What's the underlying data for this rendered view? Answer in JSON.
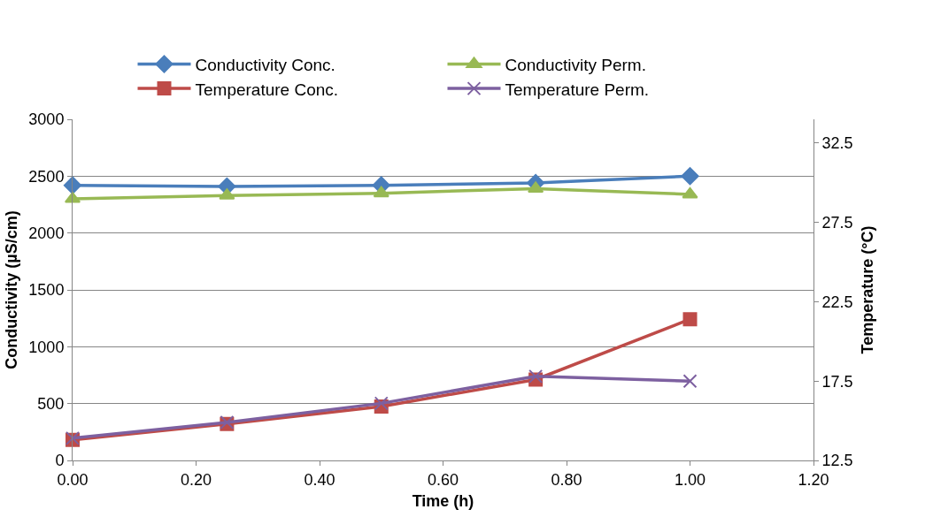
{
  "chart_data": {
    "type": "line",
    "xlabel": "Time (h)",
    "ylabel": "Conductivity (µS/cm)",
    "y2label": "Temperature (°C)",
    "x": [
      0,
      0.25,
      0.5,
      0.75,
      1.0
    ],
    "series": [
      {
        "name": "Conductivity Conc.",
        "color": "#4a7ebb",
        "marker": "diamond",
        "values": [
          2420,
          2410,
          2420,
          2440,
          2500
        ]
      },
      {
        "name": "Conductivity Perm.",
        "color": "#98b954",
        "marker": "triangle",
        "values": [
          2300,
          2330,
          2350,
          2390,
          2340
        ]
      },
      {
        "name": "Temperature Conc.",
        "color": "#be4b48",
        "marker": "square",
        "axis": "y2",
        "values": [
          13.8,
          14.8,
          15.9,
          17.6,
          21.4
        ]
      },
      {
        "name": "Temperature Perm.",
        "color": "#7d60a0",
        "marker": "cross",
        "axis": "y2",
        "values": [
          13.9,
          14.9,
          16.1,
          17.8,
          17.5
        ]
      }
    ],
    "xlim": [
      0,
      1.2
    ],
    "xticks": [
      {
        "value": 0,
        "label": "0.00"
      },
      {
        "value": 0.2,
        "label": "0.20"
      },
      {
        "value": 0.4,
        "label": "0.40"
      },
      {
        "value": 0.6,
        "label": "0.60"
      },
      {
        "value": 0.8,
        "label": "0.80"
      },
      {
        "value": 1.0,
        "label": "1.00"
      },
      {
        "value": 1.2,
        "label": "1.20"
      }
    ],
    "ylim": [
      0,
      3000
    ],
    "yticks": [
      0,
      500,
      1000,
      1500,
      2000,
      2500,
      3000
    ],
    "y2lim": [
      12.5,
      34
    ],
    "y2ticks": [
      12.5,
      17.5,
      22.5,
      27.5,
      32.5
    ],
    "grid": "y",
    "legend": "top",
    "line_style": "solid"
  }
}
